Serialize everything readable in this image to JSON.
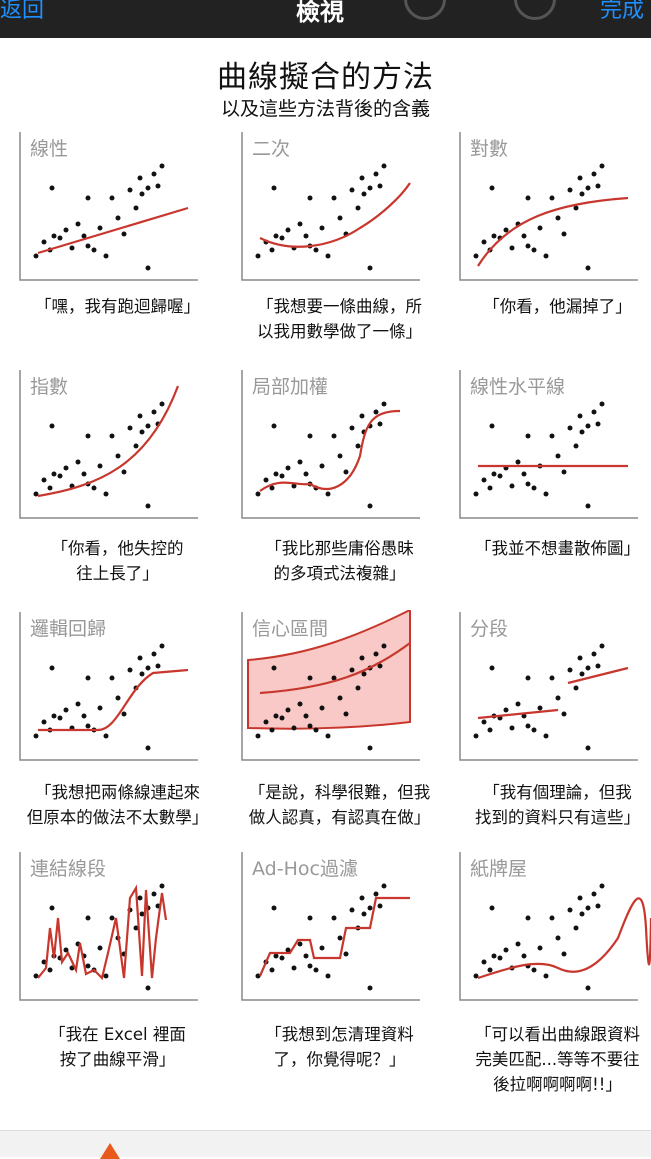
{
  "topbar": {
    "back_label": "返回",
    "title": "檢視",
    "done_label": "完成"
  },
  "comic": {
    "title": "曲線擬合的方法",
    "subtitle": "以及這些方法背後的含義",
    "panels": [
      {
        "label": "線性",
        "caption": "「嘿，我有跑迴歸喔」"
      },
      {
        "label": "二次",
        "caption": "「我想要一條曲線，所\n以我用數學做了一條」"
      },
      {
        "label": "對數",
        "caption": "「你看，他漏掉了」"
      },
      {
        "label": "指數",
        "caption": "「你看，他失控的\n往上長了」"
      },
      {
        "label": "局部加權",
        "caption": "「我比那些庸俗愚昧\n的多項式法複雜」"
      },
      {
        "label": "線性水平線",
        "caption": "「我並不想畫散佈圖」"
      },
      {
        "label": "邏輯回歸",
        "caption": "「我想把兩條線連起來\n但原本的做法不太數學」"
      },
      {
        "label": "信心區間",
        "caption": "「是說，科學很難，但我\n做人認真，有認真在做」"
      },
      {
        "label": "分段",
        "caption": "「我有個理論，但我\n找到的資料只有這些」"
      },
      {
        "label": "連結線段",
        "caption": "「我在 Excel 裡面\n按了曲線平滑」"
      },
      {
        "label": "Ad-Hoc過濾",
        "caption": "「我想到怎清理資料\n了，你覺得呢？」"
      },
      {
        "label": "紙牌屋",
        "caption": "「可以看出曲線跟資料\n完美匹配...等等不要往\n後拉啊啊啊啊!!」"
      }
    ]
  },
  "colors": {
    "curve": "#c8372d",
    "band": "#f8c9c6",
    "axis": "#888888",
    "dot": "#111111"
  }
}
